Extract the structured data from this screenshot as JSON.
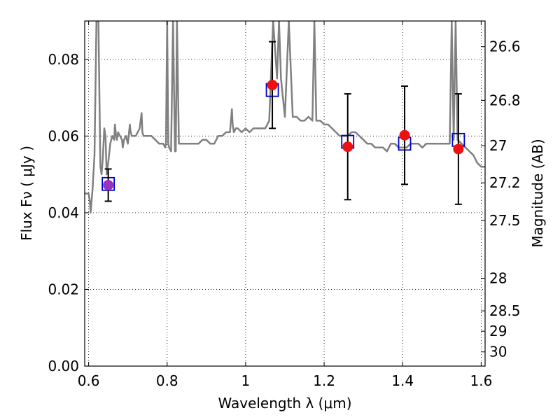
{
  "chart_data": {
    "type": "line",
    "title": "",
    "xlabel": "Wavelength  λ (μm)",
    "ylabel": "Flux  Fν  ( μJy )",
    "y2label": "Magnitude (AB)",
    "xlim": [
      0.59,
      1.61
    ],
    "ylim": [
      0.0,
      0.09
    ],
    "grid": true,
    "x_ticks": [
      {
        "value": 0.6,
        "label": "0.6"
      },
      {
        "value": 0.8,
        "label": "0.8"
      },
      {
        "value": 1.0,
        "label": "1"
      },
      {
        "value": 1.2,
        "label": "1.2"
      },
      {
        "value": 1.4,
        "label": "1.4"
      },
      {
        "value": 1.6,
        "label": "1.6"
      }
    ],
    "y_ticks": [
      {
        "value": 0.0,
        "label": "0.00"
      },
      {
        "value": 0.02,
        "label": "0.02"
      },
      {
        "value": 0.04,
        "label": "0.04"
      },
      {
        "value": 0.06,
        "label": "0.06"
      },
      {
        "value": 0.08,
        "label": "0.08"
      }
    ],
    "y2_ticks": [
      {
        "flux": 0.0833,
        "label": "26.6"
      },
      {
        "flux": 0.0693,
        "label": "26.8"
      },
      {
        "flux": 0.0575,
        "label": "27"
      },
      {
        "flux": 0.0478,
        "label": "27.2"
      },
      {
        "flux": 0.038,
        "label": "27.5"
      },
      {
        "flux": 0.0229,
        "label": "28"
      },
      {
        "flux": 0.0144,
        "label": "28.5"
      },
      {
        "flux": 0.0091,
        "label": "29"
      },
      {
        "flux": 0.0037,
        "label": "30"
      }
    ],
    "colors": {
      "model": "#808080",
      "model_photometry": "#0000cc",
      "observed": "#ee1111",
      "highlight": "#9933bb",
      "errorbar": "#000000"
    },
    "model_spectrum": {
      "x": [
        0.59,
        0.6,
        0.603,
        0.605,
        0.61,
        0.615,
        0.62,
        0.625,
        0.63,
        0.633,
        0.636,
        0.64,
        0.643,
        0.646,
        0.65,
        0.655,
        0.66,
        0.665,
        0.667,
        0.67,
        0.672,
        0.675,
        0.68,
        0.685,
        0.687,
        0.69,
        0.695,
        0.7,
        0.705,
        0.707,
        0.71,
        0.715,
        0.72,
        0.73,
        0.735,
        0.737,
        0.74,
        0.75,
        0.76,
        0.77,
        0.78,
        0.79,
        0.795,
        0.797,
        0.8,
        0.803,
        0.805,
        0.81,
        0.815,
        0.82,
        0.822,
        0.825,
        0.83,
        0.84,
        0.85,
        0.86,
        0.87,
        0.88,
        0.89,
        0.9,
        0.91,
        0.92,
        0.93,
        0.94,
        0.95,
        0.96,
        0.965,
        0.967,
        0.97,
        0.975,
        0.98,
        0.99,
        1.0,
        1.01,
        1.02,
        1.03,
        1.04,
        1.05,
        1.06,
        1.07,
        1.08,
        1.085,
        1.09,
        1.1,
        1.11,
        1.12,
        1.13,
        1.14,
        1.15,
        1.16,
        1.17,
        1.175,
        1.18,
        1.19,
        1.2,
        1.21,
        1.22,
        1.23,
        1.24,
        1.25,
        1.26,
        1.27,
        1.28,
        1.29,
        1.3,
        1.31,
        1.32,
        1.33,
        1.34,
        1.35,
        1.36,
        1.37,
        1.38,
        1.39,
        1.4,
        1.41,
        1.42,
        1.43,
        1.44,
        1.45,
        1.46,
        1.47,
        1.48,
        1.49,
        1.5,
        1.51,
        1.52,
        1.525,
        1.53,
        1.535,
        1.54,
        1.55,
        1.56,
        1.57,
        1.58,
        1.59,
        1.6,
        1.61
      ],
      "y": [
        0.045,
        0.045,
        0.043,
        0.04,
        0.046,
        0.055,
        0.09,
        0.09,
        0.052,
        0.05,
        0.054,
        0.062,
        0.06,
        0.05,
        0.053,
        0.058,
        0.06,
        0.059,
        0.063,
        0.06,
        0.059,
        0.061,
        0.06,
        0.059,
        0.057,
        0.059,
        0.06,
        0.058,
        0.063,
        0.061,
        0.06,
        0.06,
        0.06,
        0.062,
        0.066,
        0.061,
        0.06,
        0.06,
        0.06,
        0.059,
        0.058,
        0.058,
        0.057,
        0.058,
        0.09,
        0.058,
        0.057,
        0.056,
        0.09,
        0.056,
        0.056,
        0.09,
        0.058,
        0.058,
        0.058,
        0.058,
        0.058,
        0.058,
        0.059,
        0.059,
        0.058,
        0.058,
        0.06,
        0.06,
        0.061,
        0.061,
        0.067,
        0.063,
        0.061,
        0.062,
        0.062,
        0.061,
        0.062,
        0.061,
        0.062,
        0.062,
        0.062,
        0.062,
        0.064,
        0.09,
        0.075,
        0.09,
        0.075,
        0.065,
        0.09,
        0.065,
        0.065,
        0.064,
        0.064,
        0.065,
        0.064,
        0.09,
        0.064,
        0.064,
        0.063,
        0.063,
        0.062,
        0.061,
        0.06,
        0.06,
        0.06,
        0.061,
        0.061,
        0.06,
        0.059,
        0.058,
        0.058,
        0.057,
        0.057,
        0.057,
        0.056,
        0.058,
        0.058,
        0.057,
        0.057,
        0.057,
        0.058,
        0.058,
        0.058,
        0.057,
        0.058,
        0.058,
        0.058,
        0.058,
        0.058,
        0.058,
        0.058,
        0.09,
        0.059,
        0.09,
        0.059,
        0.058,
        0.057,
        0.056,
        0.055,
        0.053,
        0.052,
        0.052
      ]
    },
    "photometry": [
      {
        "x": 0.65,
        "model_flux": 0.0475,
        "observed_flux": 0.0472,
        "err": 0.0042,
        "highlight": true
      },
      {
        "x": 1.068,
        "model_flux": 0.072,
        "observed_flux": 0.0733,
        "err": 0.0113,
        "highlight": false
      },
      {
        "x": 1.26,
        "model_flux": 0.0585,
        "observed_flux": 0.0572,
        "err": 0.0138,
        "highlight": false
      },
      {
        "x": 1.405,
        "model_flux": 0.058,
        "observed_flux": 0.0602,
        "err": 0.0128,
        "highlight": false
      },
      {
        "x": 1.542,
        "model_flux": 0.059,
        "observed_flux": 0.0566,
        "err": 0.0144,
        "highlight": false
      }
    ]
  }
}
